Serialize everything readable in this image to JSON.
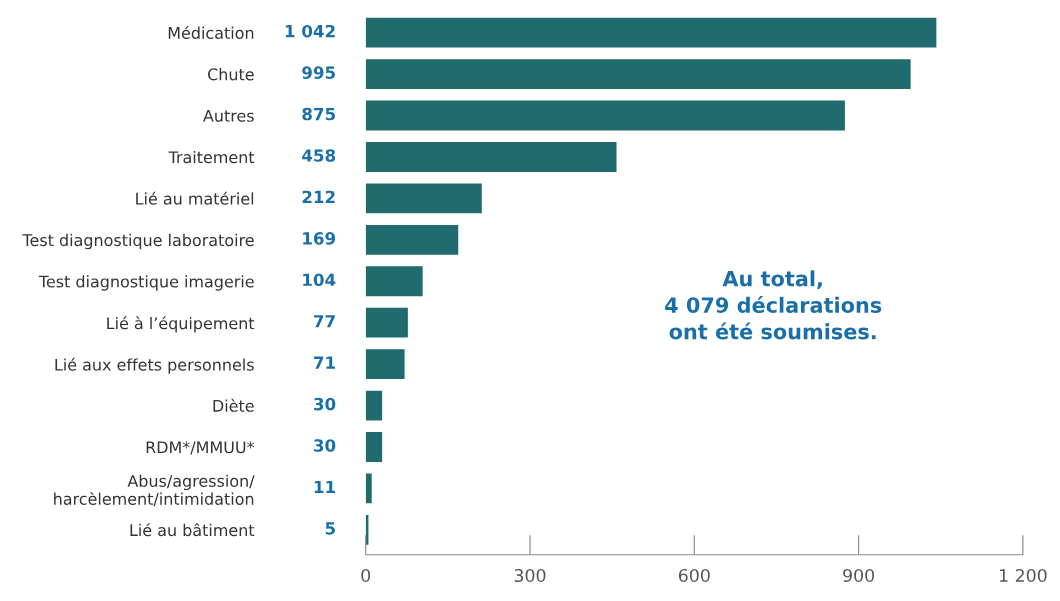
{
  "chart_data": {
    "type": "bar",
    "orientation": "horizontal",
    "categories": [
      "Médication",
      "Chute",
      "Autres",
      "Traitement",
      "Lié au matériel",
      "Test diagnostique laboratoire",
      "Test diagnostique imagerie",
      "Lié à l’équipement",
      "Lié aux effets personnels",
      "Diète",
      "RDM*/MMUU*",
      "Abus/agression/\nharcèlement/intimidation",
      "Lié au bâtiment"
    ],
    "values": [
      1042,
      995,
      875,
      458,
      212,
      169,
      104,
      77,
      71,
      30,
      30,
      11,
      5
    ],
    "value_labels": [
      "1 042",
      "995",
      "875",
      "458",
      "212",
      "169",
      "104",
      "77",
      "71",
      "30",
      "30",
      "11",
      "5"
    ],
    "color": "#1f6b6e",
    "xlim": [
      0,
      1200
    ],
    "xticks": [
      0,
      300,
      600,
      900,
      {
        "value": 1200,
        "label": "1 200"
      }
    ],
    "annotations": [
      "Au total,\n4 079 déclarations\nont été soumises."
    ],
    "grid": false
  }
}
